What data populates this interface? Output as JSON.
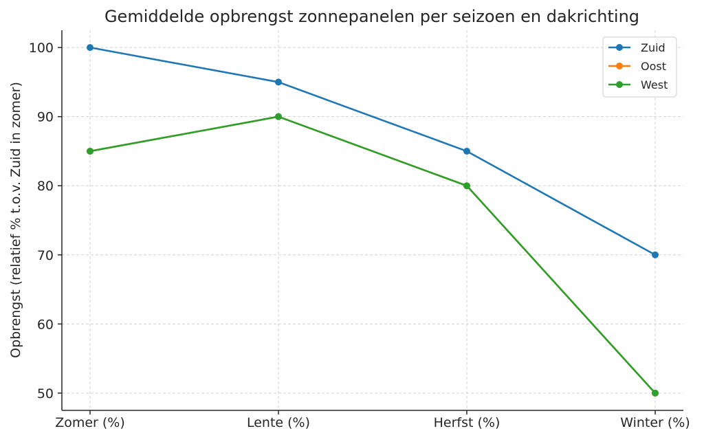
{
  "chart_data": {
    "type": "line",
    "title": "Gemiddelde opbrengst zonnepanelen per seizoen en dakrichting",
    "xlabel": "",
    "ylabel": "Opbrengst (relatief % t.o.v. Zuid in zomer)",
    "categories": [
      "Zomer (%)",
      "Lente (%)",
      "Herfst (%)",
      "Winter (%)"
    ],
    "ylim": [
      47.5,
      102.5
    ],
    "yticks": [
      50,
      60,
      70,
      80,
      90,
      100
    ],
    "grid": true,
    "legend_position": "top-right",
    "series": [
      {
        "name": "Zuid",
        "color": "#1f77b4",
        "values": [
          100,
          95,
          85,
          70
        ]
      },
      {
        "name": "Oost",
        "color": "#ff7f0e",
        "values": [
          85,
          90,
          80,
          50
        ]
      },
      {
        "name": "West",
        "color": "#2ca02c",
        "values": [
          85,
          90,
          80,
          50
        ]
      }
    ]
  }
}
